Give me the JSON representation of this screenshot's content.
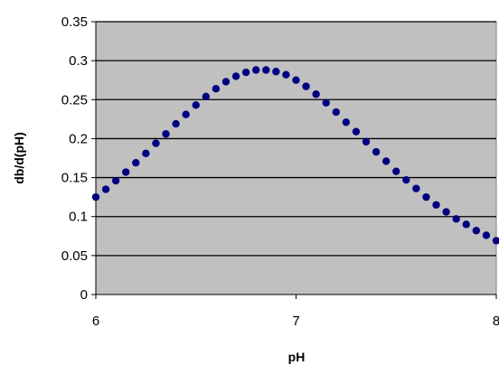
{
  "chart_data": {
    "type": "scatter",
    "title": "",
    "xlabel": "pH",
    "ylabel": "db/d(pH)",
    "xlim": [
      6,
      8
    ],
    "ylim": [
      0,
      0.35
    ],
    "x_ticks": [
      6,
      7,
      8
    ],
    "y_ticks": [
      0,
      0.05,
      0.1,
      0.15,
      0.2,
      0.25,
      0.3,
      0.35
    ],
    "x_tick_labels": [
      "6",
      "7",
      "8"
    ],
    "y_tick_labels": [
      "0",
      "0.05",
      "0.1",
      "0.15",
      "0.2",
      "0.25",
      "0.3",
      "0.35"
    ],
    "grid": true,
    "legend": "none",
    "plot_background": "#C0C0C0",
    "marker_color": "#000080",
    "series": [
      {
        "x": [
          6.0,
          6.05,
          6.1,
          6.15,
          6.2,
          6.25,
          6.3,
          6.35,
          6.4,
          6.45,
          6.5,
          6.55,
          6.6,
          6.65,
          6.7,
          6.75,
          6.8,
          6.85,
          6.9,
          6.95,
          7.0,
          7.05,
          7.1,
          7.15,
          7.2,
          7.25,
          7.3,
          7.35,
          7.4,
          7.45,
          7.5,
          7.55,
          7.6,
          7.65,
          7.7,
          7.75,
          7.8,
          7.85,
          7.9,
          7.95,
          8.0
        ],
        "values": [
          0.125,
          0.135,
          0.146,
          0.157,
          0.169,
          0.181,
          0.194,
          0.206,
          0.219,
          0.231,
          0.243,
          0.254,
          0.264,
          0.273,
          0.28,
          0.285,
          0.288,
          0.288,
          0.286,
          0.282,
          0.275,
          0.267,
          0.257,
          0.246,
          0.234,
          0.221,
          0.209,
          0.196,
          0.183,
          0.171,
          0.158,
          0.147,
          0.136,
          0.125,
          0.115,
          0.106,
          0.097,
          0.09,
          0.082,
          0.076,
          0.069
        ]
      }
    ]
  }
}
